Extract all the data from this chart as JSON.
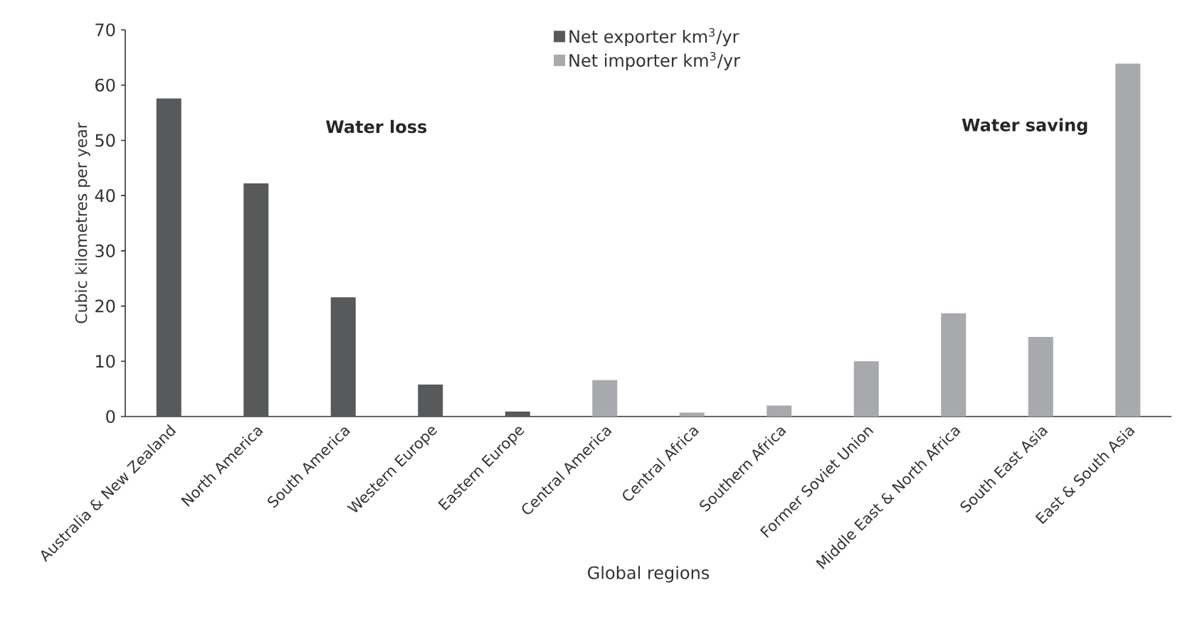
{
  "chart_data": {
    "type": "bar",
    "xlabel": "Global regions",
    "ylabel": "Cubic kilometres per year",
    "categories": [
      "Australia & New Zealand",
      "North America",
      "South America",
      "Western Europe",
      "Eastern Europe",
      "Central America",
      "Central Africa",
      "Southern Africa",
      "Former Soviet Union",
      "Middle East & North Africa",
      "South East Asia",
      "East & South Asia"
    ],
    "series": [
      {
        "name": "Net exporter km$^{3}$/yr",
        "color": "#58595b",
        "values": [
          57.6,
          42.2,
          21.6,
          5.8,
          0.9,
          null,
          null,
          null,
          null,
          null,
          null,
          null
        ]
      },
      {
        "name": "Net importer km$^{3}$/yr",
        "color": "#a7a9ac",
        "values": [
          null,
          null,
          null,
          null,
          null,
          6.6,
          0.7,
          2.0,
          10.0,
          18.7,
          14.4,
          63.9
        ]
      }
    ],
    "ylim": [
      0,
      70
    ],
    "yticks": [
      0,
      10,
      20,
      30,
      40,
      50,
      60,
      70
    ],
    "annotations": [
      "Water loss",
      "Water saving"
    ],
    "legend": "top",
    "grid": false
  }
}
